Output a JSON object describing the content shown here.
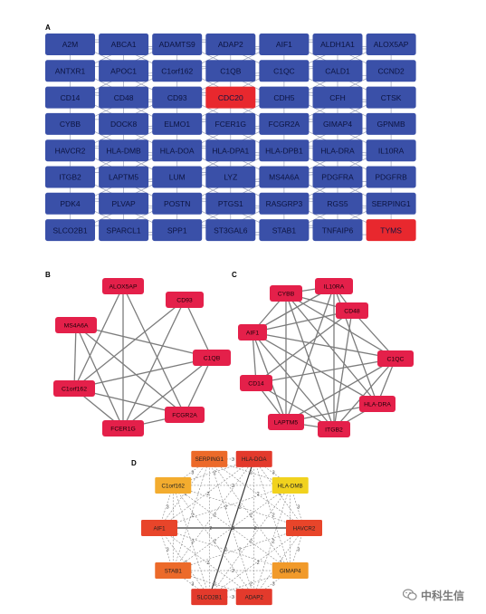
{
  "panels": {
    "A": {
      "letter": "A",
      "rows": [
        [
          "A2M",
          "ABCA1",
          "ADAMTS9",
          "ADAP2",
          "AIF1",
          "ALDH1A1",
          "ALOX5AP"
        ],
        [
          "ANTXR1",
          "APOC1",
          "C1orf162",
          "C1QB",
          "C1QC",
          "CALD1",
          "CCND2"
        ],
        [
          "CD14",
          "CD48",
          "CD93",
          "CDC20",
          "CDH5",
          "CFH",
          "CTSK"
        ],
        [
          "CYBB",
          "DOCK8",
          "ELMO1",
          "FCER1G",
          "FCGR2A",
          "GIMAP4",
          "GPNMB"
        ],
        [
          "HAVCR2",
          "HLA-DMB",
          "HLA-DOA",
          "HLA-DPA1",
          "HLA-DPB1",
          "HLA-DRA",
          "IL10RA"
        ],
        [
          "ITGB2",
          "LAPTM5",
          "LUM",
          "LYZ",
          "MS4A6A",
          "PDGFRA",
          "PDGFRB"
        ],
        [
          "PDK4",
          "PLVAP",
          "POSTN",
          "PTGS1",
          "RASGRP3",
          "RGS5",
          "SERPING1"
        ],
        [
          "SLCO2B1",
          "SPARCL1",
          "SPP1",
          "ST3GAL6",
          "STAB1",
          "TNFAIP6",
          "TYMS"
        ]
      ],
      "highlighted": [
        "CDC20",
        "TYMS"
      ],
      "colors": {
        "node": "#3a50a8",
        "highlight": "#e8282e",
        "text": "#0c1440",
        "edge": "#9aa0b8"
      }
    },
    "B": {
      "letter": "B",
      "nodes": [
        "ALOX5AP",
        "CD93",
        "C1QB",
        "FCGR2A",
        "FCER1G",
        "C1orf162",
        "MS4A6A"
      ],
      "edges": [
        [
          0,
          4
        ],
        [
          0,
          5
        ],
        [
          0,
          3
        ],
        [
          1,
          4
        ],
        [
          1,
          2
        ],
        [
          1,
          5
        ],
        [
          2,
          3
        ],
        [
          2,
          4
        ],
        [
          2,
          5
        ],
        [
          2,
          6
        ],
        [
          3,
          4
        ],
        [
          3,
          5
        ],
        [
          4,
          5
        ],
        [
          4,
          6
        ],
        [
          5,
          6
        ],
        [
          6,
          3
        ]
      ],
      "colors": {
        "node": "#e4204a",
        "text": "#1a0008",
        "edge": "#7c7c7c"
      }
    },
    "C": {
      "letter": "C",
      "nodes": [
        "IL10RA",
        "CD48",
        "C1QC",
        "HLA-DRA",
        "ITGB2",
        "LAPTM5",
        "CD14",
        "AIF1",
        "CYBB"
      ],
      "edges": [
        [
          0,
          1
        ],
        [
          0,
          3
        ],
        [
          0,
          4
        ],
        [
          0,
          5
        ],
        [
          0,
          7
        ],
        [
          0,
          8
        ],
        [
          1,
          2
        ],
        [
          1,
          4
        ],
        [
          1,
          6
        ],
        [
          1,
          7
        ],
        [
          2,
          3
        ],
        [
          2,
          4
        ],
        [
          2,
          5
        ],
        [
          2,
          7
        ],
        [
          2,
          8
        ],
        [
          3,
          4
        ],
        [
          3,
          5
        ],
        [
          3,
          7
        ],
        [
          3,
          8
        ],
        [
          4,
          5
        ],
        [
          4,
          6
        ],
        [
          4,
          7
        ],
        [
          4,
          8
        ],
        [
          5,
          6
        ],
        [
          5,
          7
        ],
        [
          5,
          8
        ],
        [
          6,
          7
        ],
        [
          6,
          2
        ],
        [
          7,
          8
        ],
        [
          8,
          1
        ]
      ],
      "colors": {
        "node": "#e4204a",
        "text": "#1a0008",
        "edge": "#7c7c7c"
      }
    },
    "D": {
      "letter": "D",
      "nodes": [
        {
          "label": "HLA-DOA",
          "color": "#e33a2c"
        },
        {
          "label": "HLA-DMB",
          "color": "#f1d21e"
        },
        {
          "label": "HAVCR2",
          "color": "#e8452a"
        },
        {
          "label": "GIMAP4",
          "color": "#f19a2a"
        },
        {
          "label": "ADAP2",
          "color": "#e33a2c"
        },
        {
          "label": "SLCO2B1",
          "color": "#e33a2c"
        },
        {
          "label": "STAB1",
          "color": "#ec6a2a"
        },
        {
          "label": "AIF1",
          "color": "#e8452a"
        },
        {
          "label": "C1orf162",
          "color": "#f3ac2e"
        },
        {
          "label": "SERPING1",
          "color": "#ec6a2a"
        }
      ],
      "edge_weight_label": "2",
      "strong_edge_label": "3",
      "colors": {
        "text": "#222222",
        "edge": "#8a8a8a",
        "strong_edge": "#3a3a3a",
        "weight": "#444444"
      }
    }
  },
  "watermark": {
    "text": "中科生信",
    "icon": "wechat-icon"
  }
}
